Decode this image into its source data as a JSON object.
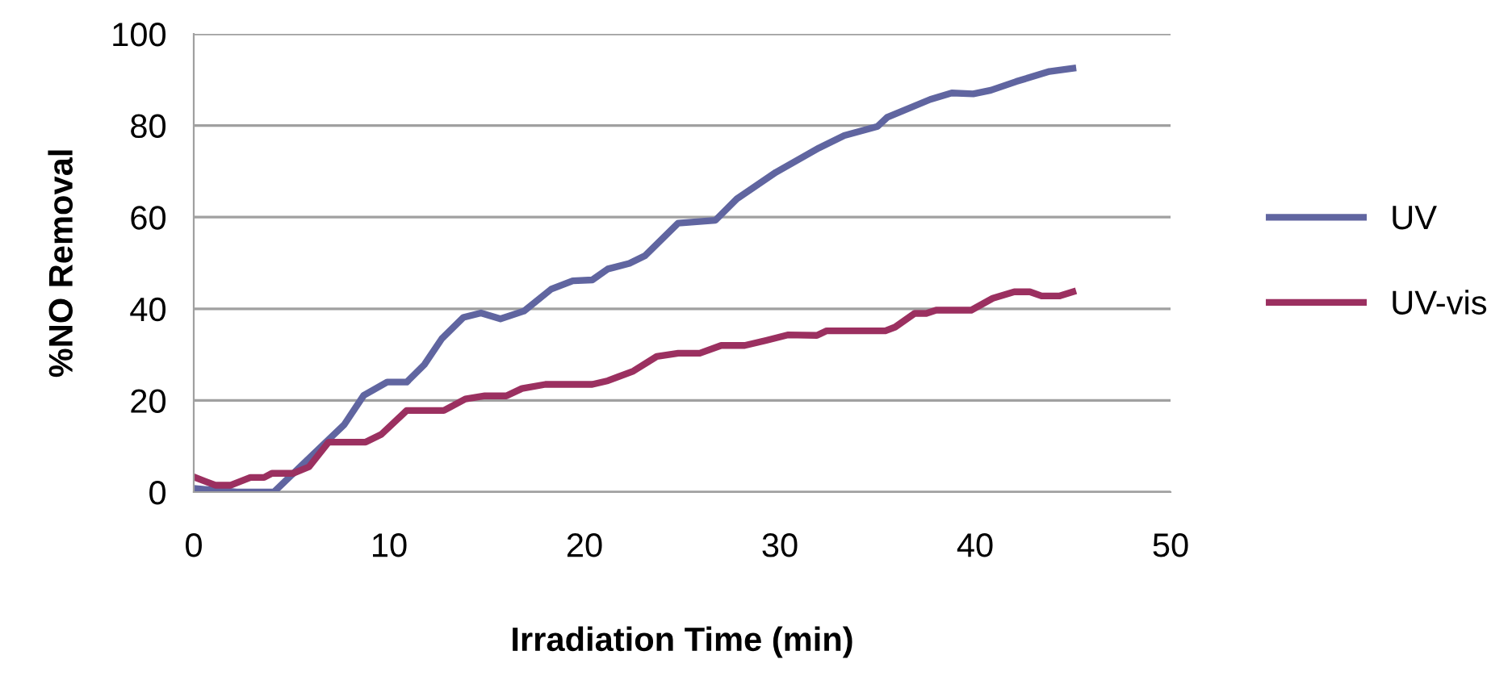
{
  "chart_data": {
    "type": "line",
    "xlabel": "Irradiation Time (min)",
    "ylabel": "%NO Removal",
    "xlim": [
      0,
      50
    ],
    "xticks": [
      0,
      10,
      20,
      30,
      40,
      50
    ],
    "ylim": [
      0,
      100
    ],
    "yticks": [
      0,
      20,
      40,
      60,
      80,
      100
    ],
    "grid": "y",
    "legend": "right",
    "marker": "none",
    "line_style": "solid",
    "series": [
      {
        "name": "UV",
        "color": "#6065a0",
        "x": [
          0,
          2.2,
          4.1,
          6.1,
          7.7,
          8.7,
          9.9,
          10.9,
          11.8,
          12.7,
          13.8,
          14.7,
          15.7,
          16.9,
          18.3,
          19.4,
          20.4,
          21.2,
          22.3,
          23.1,
          24.8,
          26.7,
          27.8,
          29.8,
          32,
          33.3,
          35,
          35.5,
          37.7,
          38.8,
          39.9,
          40.8,
          42.1,
          43.8,
          45
        ],
        "values": [
          0.8,
          0,
          0,
          8.2,
          14.7,
          21.1,
          24,
          24,
          27.8,
          33.5,
          38.1,
          39.1,
          37.8,
          39.5,
          44.3,
          46.1,
          46.3,
          48.7,
          49.9,
          51.6,
          58.7,
          59.3,
          64,
          69.8,
          75.1,
          77.8,
          79.8,
          81.8,
          85.7,
          87.1,
          86.9,
          87.7,
          89.6,
          91.8,
          92.5
        ]
      },
      {
        "name": "UV-vis",
        "color": "#9b3060",
        "x": [
          0,
          1.1,
          1.9,
          2.9,
          3.6,
          4,
          5.1,
          5.9,
          6.9,
          8.8,
          9.6,
          10.9,
          12.8,
          13.9,
          14.9,
          16,
          16.8,
          18,
          20.4,
          21.2,
          22.5,
          23.7,
          24.8,
          25.9,
          27,
          28.2,
          29.3,
          30.4,
          31.9,
          32.4,
          35.4,
          35.9,
          36.9,
          37.5,
          38,
          39.8,
          40.9,
          42,
          42.8,
          43.4,
          44.3,
          45
        ],
        "values": [
          3.3,
          1.5,
          1.5,
          3.2,
          3.2,
          4.1,
          4.1,
          5.5,
          10.9,
          10.9,
          12.6,
          17.8,
          17.8,
          20.3,
          21,
          21,
          22.6,
          23.5,
          23.5,
          24.3,
          26.4,
          29.6,
          30.3,
          30.3,
          32,
          32,
          33.1,
          34.3,
          34.2,
          35.2,
          35.2,
          36,
          39,
          39,
          39.7,
          39.7,
          42.3,
          43.7,
          43.7,
          42.8,
          42.8,
          43.7
        ]
      }
    ]
  }
}
